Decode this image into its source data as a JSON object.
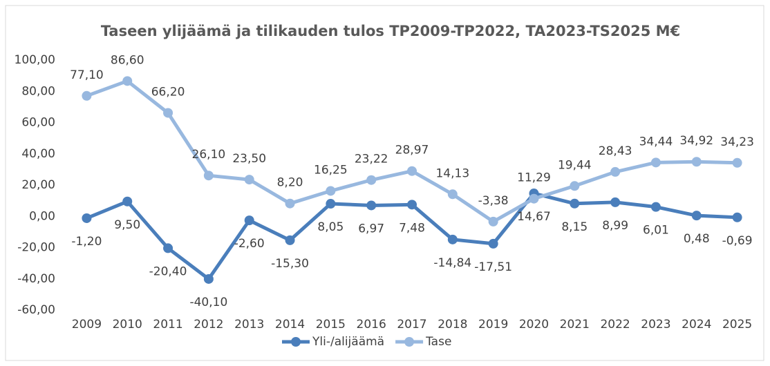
{
  "chart_data": {
    "type": "line",
    "title": "Taseen ylijäämä ja tilikauden tulos TP2009-TP2022, TA2023-TS2025 M€",
    "categories": [
      "2009",
      "2010",
      "2011",
      "2012",
      "2013",
      "2014",
      "2015",
      "2016",
      "2017",
      "2018",
      "2019",
      "2020",
      "2021",
      "2022",
      "2023",
      "2024",
      "2025"
    ],
    "series": [
      {
        "name": "Yli-/alijäämä",
        "color": "#4a7ebb",
        "values": [
          -1.2,
          9.5,
          -20.4,
          -40.1,
          -2.6,
          -15.3,
          8.05,
          6.97,
          7.48,
          -14.84,
          -17.51,
          14.67,
          8.15,
          8.99,
          6.01,
          0.48,
          -0.69
        ],
        "value_labels": [
          "-1,20",
          "9,50",
          "-20,40",
          "-40,10",
          "-2,60",
          "-15,30",
          "8,05",
          "6,97",
          "7,48",
          "-14,84",
          "-17,51",
          "14,67",
          "8,15",
          "8,99",
          "6,01",
          "0,48",
          "-0,69"
        ]
      },
      {
        "name": "Tase",
        "color": "#98b8df",
        "values": [
          77.1,
          86.6,
          66.2,
          26.1,
          23.5,
          8.2,
          16.25,
          23.22,
          28.97,
          14.13,
          -3.38,
          11.29,
          19.44,
          28.43,
          34.44,
          34.92,
          34.23
        ],
        "value_labels": [
          "77,10",
          "86,60",
          "66,20",
          "26,10",
          "23,50",
          "8,20",
          "16,25",
          "23,22",
          "28,97",
          "14,13",
          "-3,38",
          "11,29",
          "19,44",
          "28,43",
          "34,44",
          "34,92",
          "34,23"
        ]
      }
    ],
    "ylim": [
      -60,
      100
    ],
    "yticks": [
      {
        "value": -60,
        "label": "-60,00"
      },
      {
        "value": -40,
        "label": "-40,00"
      },
      {
        "value": -20,
        "label": "-20,00"
      },
      {
        "value": 0,
        "label": "0,00"
      },
      {
        "value": 20,
        "label": "20,00"
      },
      {
        "value": 40,
        "label": "40,00"
      },
      {
        "value": 60,
        "label": "60,00"
      },
      {
        "value": 80,
        "label": "80,00"
      },
      {
        "value": 100,
        "label": "100,00"
      }
    ],
    "grid": false,
    "legend": "bottom"
  }
}
